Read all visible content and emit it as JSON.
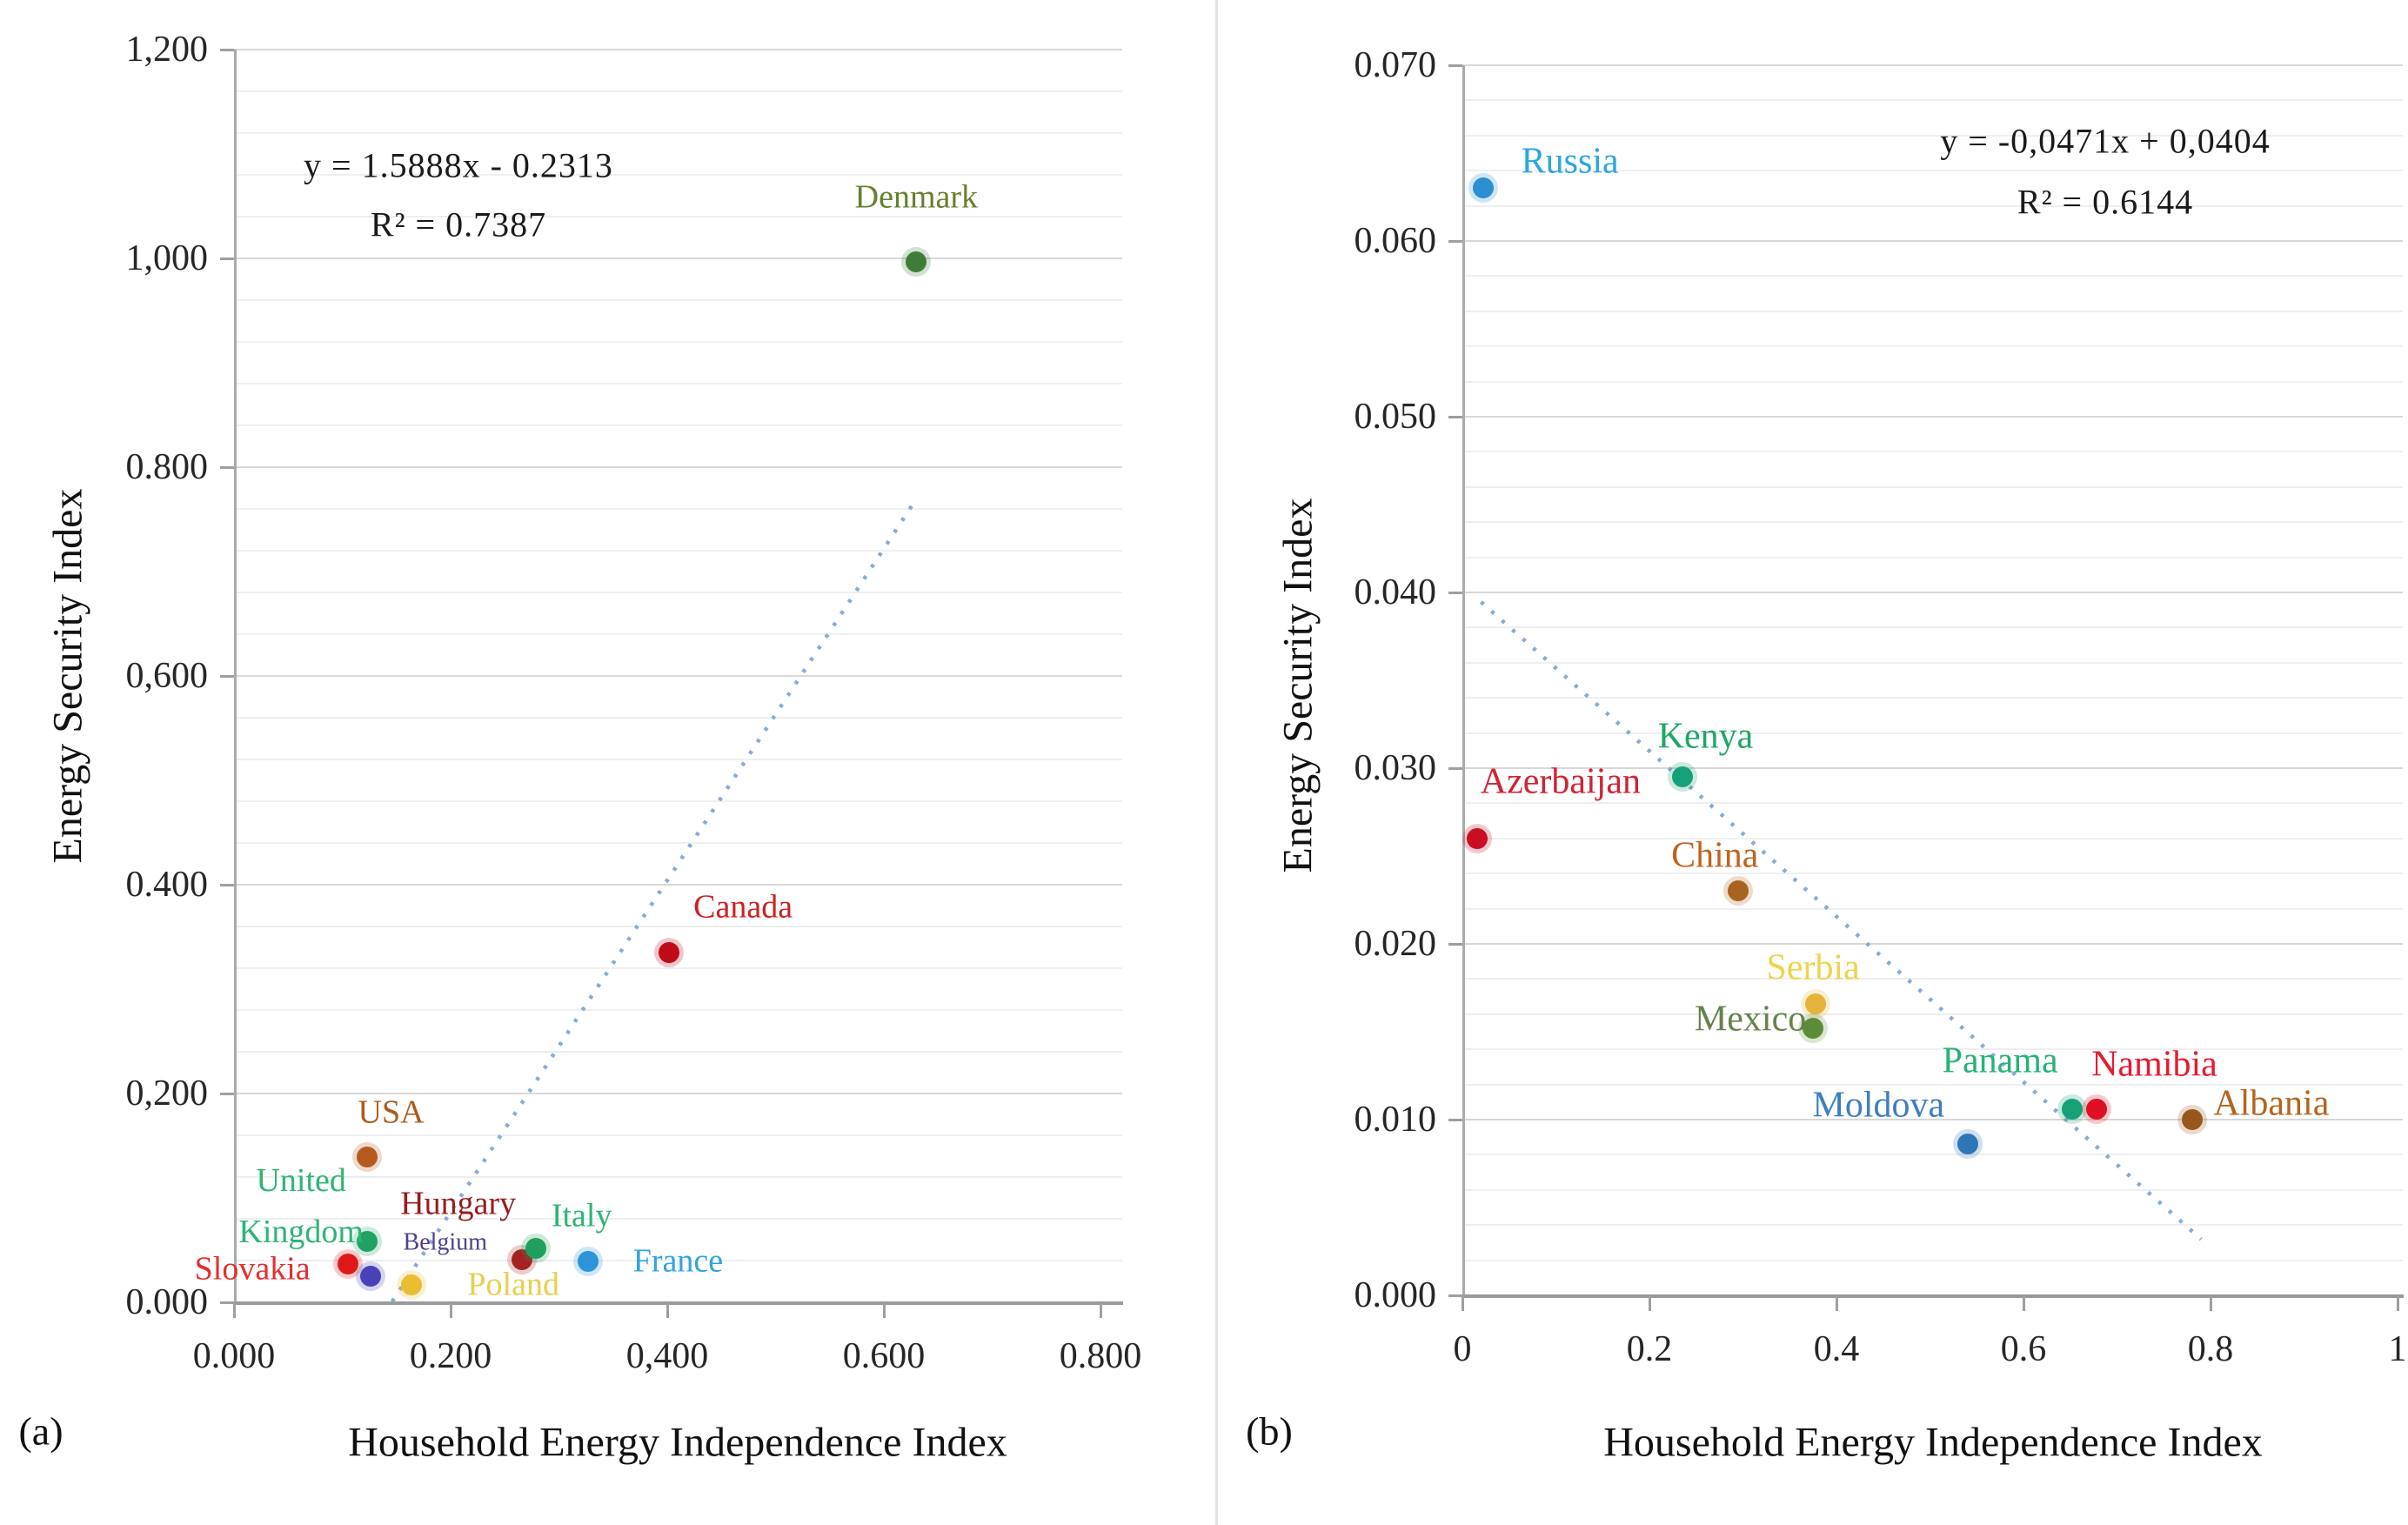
{
  "panel_divider": true,
  "chart_data": [
    {
      "id": "a",
      "type": "scatter",
      "panel_label": "(a)",
      "xlabel": "Household Energy Independence Index",
      "ylabel": "Energy Security Index",
      "equation": "y = 1.5888x - 0.2313",
      "r_squared": "R² = 0.7387",
      "xlim": [
        0,
        0.8
      ],
      "ylim": [
        0,
        1.2
      ],
      "x_tick_values": [
        0,
        0.2,
        0.4,
        0.6,
        0.8
      ],
      "x_tick_labels": [
        "0.000",
        "0.200",
        "0,400",
        "0.600",
        "0.800"
      ],
      "y_tick_values": [
        0,
        0.2,
        0.4,
        0.6,
        0.8,
        1.0,
        1.2
      ],
      "y_tick_labels": [
        "0.000",
        "0,200",
        "0.400",
        "0,600",
        "0.800",
        "1,000",
        "1,200"
      ],
      "y_minor_step": 0.04,
      "grid": true,
      "legend": "none",
      "trendline": {
        "style": "dotted",
        "color": "#88abd2",
        "slope": 1.5888,
        "intercept": -0.2313,
        "x_start": 0.146,
        "x_end": 0.628
      },
      "points": [
        {
          "name": "Denmark",
          "label": "Denmark",
          "x": 0.63,
          "y": 0.997,
          "dot_color": "#3f7c3a",
          "label_color": "#66802d",
          "label_x": 0.63,
          "label_y": 1.058
        },
        {
          "name": "Canada",
          "label": "Canada",
          "x": 0.402,
          "y": 0.335,
          "dot_color": "#c00a18",
          "label_color": "#cc2222",
          "label_x": 0.47,
          "label_y": 0.378
        },
        {
          "name": "USA",
          "label": "USA",
          "x": 0.123,
          "y": 0.139,
          "dot_color": "#b55a1e",
          "label_color": "#b05a1a",
          "label_x": 0.145,
          "label_y": 0.182
        },
        {
          "name": "United Kingdom",
          "label": "United\nKingdom",
          "x": 0.123,
          "y": 0.058,
          "dot_color": "#21a164",
          "label_color": "#2eb573",
          "label_x": 0.062,
          "label_y": 0.0915
        },
        {
          "name": "Hungary",
          "label": "Hungary",
          "x": 0.266,
          "y": 0.041,
          "dot_color": "#a42222",
          "label_color": "#9a1b1b",
          "label_x": 0.207,
          "label_y": 0.0945
        },
        {
          "name": "Italy",
          "label": "Italy",
          "x": 0.279,
          "y": 0.052,
          "dot_color": "#1fa05e",
          "label_color": "#2eb573",
          "label_x": 0.321,
          "label_y": 0.0825
        },
        {
          "name": "France",
          "label": "France",
          "x": 0.327,
          "y": 0.039,
          "dot_color": "#2e93d8",
          "label_color": "#31a3dd",
          "label_x": 0.41,
          "label_y": 0.039
        },
        {
          "name": "Slovakia",
          "label": "Slovakia",
          "x": 0.105,
          "y": 0.037,
          "dot_color": "#e01818",
          "label_color": "#e13030",
          "label_x": 0.017,
          "label_y": 0.0315
        },
        {
          "name": "Belgium",
          "label": "Belgium",
          "x": 0.126,
          "y": 0.025,
          "dot_color": "#4a41b7",
          "label_color": "#51408c",
          "label_x": 0.195,
          "label_y": 0.0575,
          "label_size": 28
        },
        {
          "name": "Poland",
          "label": "Poland",
          "x": 0.164,
          "y": 0.017,
          "dot_color": "#e9be33",
          "label_color": "#e8d050",
          "label_x": 0.258,
          "label_y": 0.0165
        }
      ]
    },
    {
      "id": "b",
      "type": "scatter",
      "panel_label": "(b)",
      "xlabel": "Household Energy Independence Index",
      "ylabel": "Energy Security Index",
      "equation": "y = -0,0471x + 0,0404",
      "r_squared": "R² = 0.6144",
      "xlim": [
        0,
        1
      ],
      "ylim": [
        0,
        0.07
      ],
      "x_tick_values": [
        0,
        0.2,
        0.4,
        0.6,
        0.8,
        1
      ],
      "x_tick_labels": [
        "0",
        "0.2",
        "0.4",
        "0.6",
        "0.8",
        "1"
      ],
      "y_tick_values": [
        0,
        0.01,
        0.02,
        0.03,
        0.04,
        0.05,
        0.06,
        0.07
      ],
      "y_tick_labels": [
        "0.000",
        "0.010",
        "0.020",
        "0.030",
        "0.040",
        "0.050",
        "0.060",
        "0.070"
      ],
      "y_minor_step": 0.002,
      "grid": true,
      "legend": "none",
      "trendline": {
        "style": "dotted",
        "color": "#88abd2",
        "slope": -0.0471,
        "intercept": 0.0404,
        "x_start": 0.02,
        "x_end": 0.79
      },
      "points": [
        {
          "name": "Russia",
          "label": "Russia",
          "x": 0.022,
          "y": 0.063,
          "dot_color": "#2b8fd2",
          "label_color": "#2ba6e0",
          "label_x": 0.115,
          "label_y": 0.0645
        },
        {
          "name": "Kenya",
          "label": "Kenya",
          "x": 0.235,
          "y": 0.0295,
          "dot_color": "#16a077",
          "label_color": "#1fa765",
          "label_x": 0.26,
          "label_y": 0.0318
        },
        {
          "name": "Azerbaijan",
          "label": "Azerbaijan",
          "x": 0.016,
          "y": 0.026,
          "dot_color": "#c90e24",
          "label_color": "#cf2433",
          "label_x": 0.105,
          "label_y": 0.0292
        },
        {
          "name": "China",
          "label": "China",
          "x": 0.295,
          "y": 0.023,
          "dot_color": "#a8641f",
          "label_color": "#bf6420",
          "label_x": 0.27,
          "label_y": 0.025
        },
        {
          "name": "Serbia",
          "label": "Serbia",
          "x": 0.378,
          "y": 0.0166,
          "dot_color": "#e6b33a",
          "label_color": "#edd44c",
          "label_x": 0.375,
          "label_y": 0.0186
        },
        {
          "name": "Mexico",
          "label": "Mexico",
          "x": 0.375,
          "y": 0.0152,
          "dot_color": "#5c8c38",
          "label_color": "#64834a",
          "label_x": 0.308,
          "label_y": 0.0157
        },
        {
          "name": "Panama",
          "label": "Panama",
          "x": 0.652,
          "y": 0.0106,
          "dot_color": "#17a076",
          "label_color": "#26b377",
          "label_x": 0.575,
          "label_y": 0.0133
        },
        {
          "name": "Namibia",
          "label": "Namibia",
          "x": 0.678,
          "y": 0.0106,
          "dot_color": "#dd1023",
          "label_color": "#e8192f",
          "label_x": 0.74,
          "label_y": 0.0131
        },
        {
          "name": "Moldova",
          "label": "Moldova",
          "x": 0.54,
          "y": 0.0086,
          "dot_color": "#2f76b5",
          "label_color": "#3d7ec0",
          "label_x": 0.445,
          "label_y": 0.0108
        },
        {
          "name": "Albania",
          "label": "Albania",
          "x": 0.78,
          "y": 0.01,
          "dot_color": "#99571d",
          "label_color": "#b3651d",
          "label_x": 0.865,
          "label_y": 0.0109
        }
      ]
    }
  ]
}
